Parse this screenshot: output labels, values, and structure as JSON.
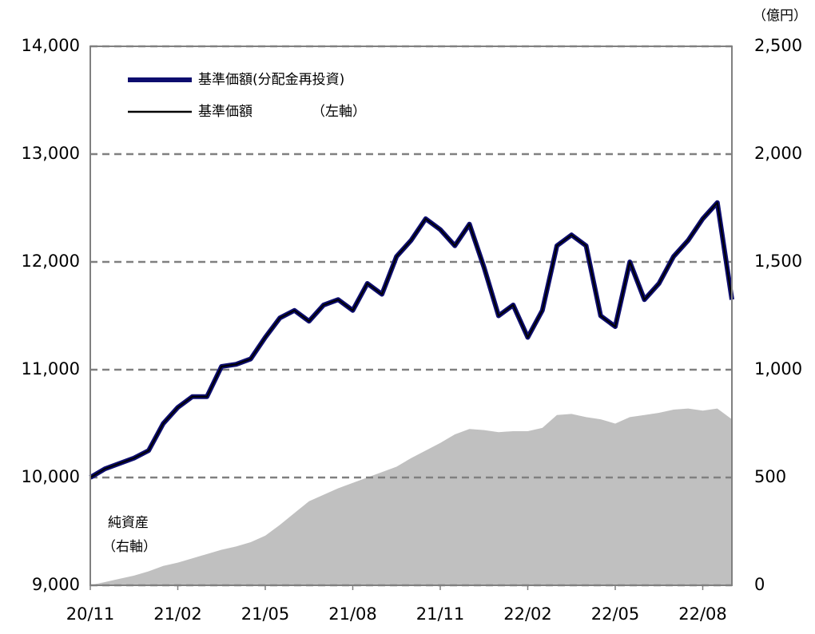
{
  "chart_data": {
    "type": "line",
    "categories": [
      "20/11",
      null,
      null,
      null,
      null,
      null,
      "21/02",
      null,
      null,
      null,
      null,
      null,
      "21/05",
      null,
      null,
      null,
      null,
      null,
      "21/08",
      null,
      null,
      null,
      null,
      null,
      "21/11",
      null,
      null,
      null,
      null,
      null,
      "22/02",
      null,
      null,
      null,
      null,
      null,
      "22/05",
      null,
      null,
      null,
      null,
      null,
      "22/08",
      null,
      null
    ],
    "series": [
      {
        "name": "基準価額(分配金再投資)",
        "color": "#0c0c6e",
        "values": [
          10000,
          10080,
          10130,
          10180,
          10250,
          10500,
          10650,
          10750,
          10750,
          11030,
          11050,
          11100,
          11300,
          11480,
          11550,
          11450,
          11600,
          11650,
          11550,
          11800,
          11700,
          12050,
          12200,
          12400,
          12300,
          12150,
          12350,
          11950,
          11500,
          11600,
          11300,
          11550,
          12150,
          12250,
          12150,
          11500,
          11400,
          12000,
          11650,
          11800,
          12050,
          12200,
          12400,
          12550,
          11650
        ]
      },
      {
        "name": "基準価額",
        "color": "#000000",
        "values": [
          10000,
          10080,
          10130,
          10180,
          10250,
          10500,
          10650,
          10750,
          10750,
          11030,
          11050,
          11100,
          11300,
          11480,
          11550,
          11450,
          11600,
          11650,
          11550,
          11800,
          11700,
          12050,
          12200,
          12400,
          12300,
          12150,
          12350,
          11950,
          11500,
          11600,
          11300,
          11550,
          12150,
          12250,
          12150,
          11500,
          11400,
          12000,
          11650,
          11800,
          12050,
          12200,
          12400,
          12550,
          11650
        ]
      },
      {
        "name": "純資産",
        "color": "#c0c0c0",
        "axis": "y2",
        "values": [
          0,
          15,
          30,
          45,
          65,
          90,
          105,
          125,
          145,
          165,
          180,
          200,
          230,
          280,
          335,
          390,
          420,
          450,
          475,
          500,
          525,
          550,
          590,
          625,
          660,
          700,
          725,
          720,
          710,
          715,
          715,
          730,
          790,
          795,
          780,
          770,
          750,
          780,
          790,
          800,
          815,
          820,
          810,
          820,
          770
        ]
      }
    ],
    "ylim": [
      9000,
      14000
    ],
    "yticks": [
      {
        "value": 9000,
        "label": "9,000"
      },
      {
        "value": 10000,
        "label": "10,000"
      },
      {
        "value": 11000,
        "label": "11,000"
      },
      {
        "value": 12000,
        "label": "12,000"
      },
      {
        "value": 13000,
        "label": "13,000"
      },
      {
        "value": 14000,
        "label": "14,000"
      }
    ],
    "y2lim": [
      0,
      2500
    ],
    "y2ticks": [
      0,
      500,
      {
        "value": 1000,
        "label": "1,000"
      },
      {
        "value": 1500,
        "label": "1,500"
      },
      {
        "value": 2000,
        "label": "2,000"
      },
      {
        "value": 2500,
        "label": "2,500"
      }
    ],
    "grid": true,
    "y2_unit": "（億円）",
    "legend_note": "（左軸）",
    "area_label": "純資産",
    "area_note": "（右軸）"
  }
}
